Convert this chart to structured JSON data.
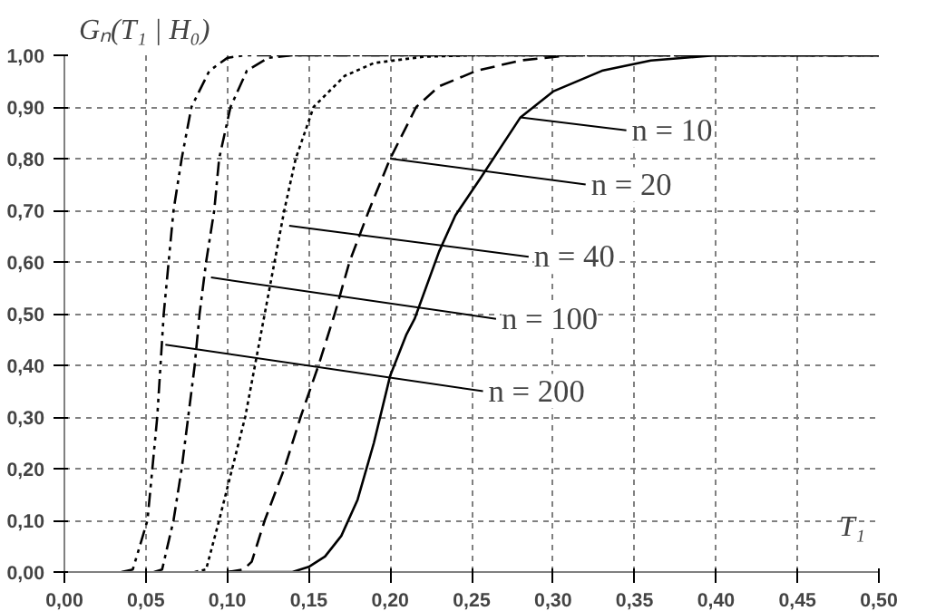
{
  "chart_data": {
    "type": "line",
    "xlabel": "T₁",
    "ylabel": "Gₙ(T₁ | H₀)",
    "xlim": [
      0,
      0.5
    ],
    "ylim": [
      0,
      1
    ],
    "xticks": [
      {
        "value": 0,
        "label": "0,00"
      },
      {
        "value": 0.05,
        "label": "0,05"
      },
      {
        "value": 0.1,
        "label": "0,10"
      },
      {
        "value": 0.15,
        "label": "0,15"
      },
      {
        "value": 0.2,
        "label": "0,20"
      },
      {
        "value": 0.25,
        "label": "0,25"
      },
      {
        "value": 0.3,
        "label": "0,30"
      },
      {
        "value": 0.35,
        "label": "0,35"
      },
      {
        "value": 0.4,
        "label": "0,40"
      },
      {
        "value": 0.45,
        "label": "0,45"
      },
      {
        "value": 0.5,
        "label": "0,50"
      }
    ],
    "yticks": [
      {
        "value": 0,
        "label": "0,00"
      },
      {
        "value": 0.1,
        "label": "0,10"
      },
      {
        "value": 0.2,
        "label": "0,20"
      },
      {
        "value": 0.3,
        "label": "0,30"
      },
      {
        "value": 0.4,
        "label": "0,40"
      },
      {
        "value": 0.5,
        "label": "0,50"
      },
      {
        "value": 0.6,
        "label": "0,60"
      },
      {
        "value": 0.7,
        "label": "0,70"
      },
      {
        "value": 0.8,
        "label": "0,80"
      },
      {
        "value": 0.9,
        "label": "0,90"
      },
      {
        "value": 1,
        "label": "1,00"
      }
    ],
    "grid": true,
    "marker": "none",
    "series": [
      {
        "color": "#000000",
        "line_style": "solid",
        "x": [
          0.1,
          0.14,
          0.15,
          0.16,
          0.17,
          0.18,
          0.19,
          0.2,
          0.21,
          0.215,
          0.23,
          0.24,
          0.255,
          0.28,
          0.3,
          0.33,
          0.36,
          0.4,
          0.5
        ],
        "values": [
          0,
          0,
          0.01,
          0.03,
          0.07,
          0.14,
          0.25,
          0.38,
          0.46,
          0.49,
          0.62,
          0.69,
          0.76,
          0.88,
          0.93,
          0.97,
          0.99,
          1.0,
          1.0
        ]
      },
      {
        "color": "#000000",
        "line_style": "dashed",
        "x": [
          0.1,
          0.11,
          0.115,
          0.123,
          0.135,
          0.145,
          0.156,
          0.166,
          0.175,
          0.187,
          0.2,
          0.216,
          0.23,
          0.253,
          0.28,
          0.31,
          0.5
        ],
        "values": [
          0,
          0.005,
          0.02,
          0.1,
          0.2,
          0.3,
          0.4,
          0.5,
          0.6,
          0.7,
          0.8,
          0.9,
          0.94,
          0.97,
          0.99,
          1.0,
          1.0
        ]
      },
      {
        "color": "#000000",
        "line_style": "dotted",
        "x": [
          0.08,
          0.087,
          0.095,
          0.103,
          0.111,
          0.117,
          0.123,
          0.129,
          0.135,
          0.142,
          0.153,
          0.172,
          0.19,
          0.22,
          0.25,
          0.5
        ],
        "values": [
          0,
          0.005,
          0.1,
          0.2,
          0.3,
          0.4,
          0.5,
          0.6,
          0.7,
          0.8,
          0.9,
          0.96,
          0.985,
          0.997,
          1.0,
          1.0
        ]
      },
      {
        "color": "#000000",
        "line_style": "dashdot",
        "x": [
          0.055,
          0.06,
          0.067,
          0.072,
          0.076,
          0.08,
          0.083,
          0.087,
          0.092,
          0.095,
          0.102,
          0.112,
          0.125,
          0.14,
          0.5
        ],
        "values": [
          0,
          0.005,
          0.1,
          0.2,
          0.3,
          0.4,
          0.5,
          0.6,
          0.7,
          0.8,
          0.9,
          0.97,
          0.995,
          1.0,
          1.0
        ]
      },
      {
        "color": "#000000",
        "line_style": "dashdotdot",
        "x": [
          0.035,
          0.042,
          0.051,
          0.054,
          0.057,
          0.059,
          0.061,
          0.064,
          0.067,
          0.072,
          0.078,
          0.089,
          0.1,
          0.11,
          0.5
        ],
        "values": [
          0,
          0.005,
          0.1,
          0.2,
          0.3,
          0.4,
          0.5,
          0.6,
          0.7,
          0.8,
          0.9,
          0.97,
          0.995,
          1.0,
          1.0
        ]
      }
    ],
    "annotations": [
      {
        "text": "n = 10",
        "x": 0.28,
        "y": 0.88
      },
      {
        "text": "n = 20",
        "x": 0.2,
        "y": 0.8
      },
      {
        "text": "n = 40",
        "x": 0.138,
        "y": 0.67
      },
      {
        "text": "n = 100",
        "x": 0.09,
        "y": 0.57
      },
      {
        "text": "n = 200",
        "x": 0.062,
        "y": 0.44
      }
    ]
  }
}
